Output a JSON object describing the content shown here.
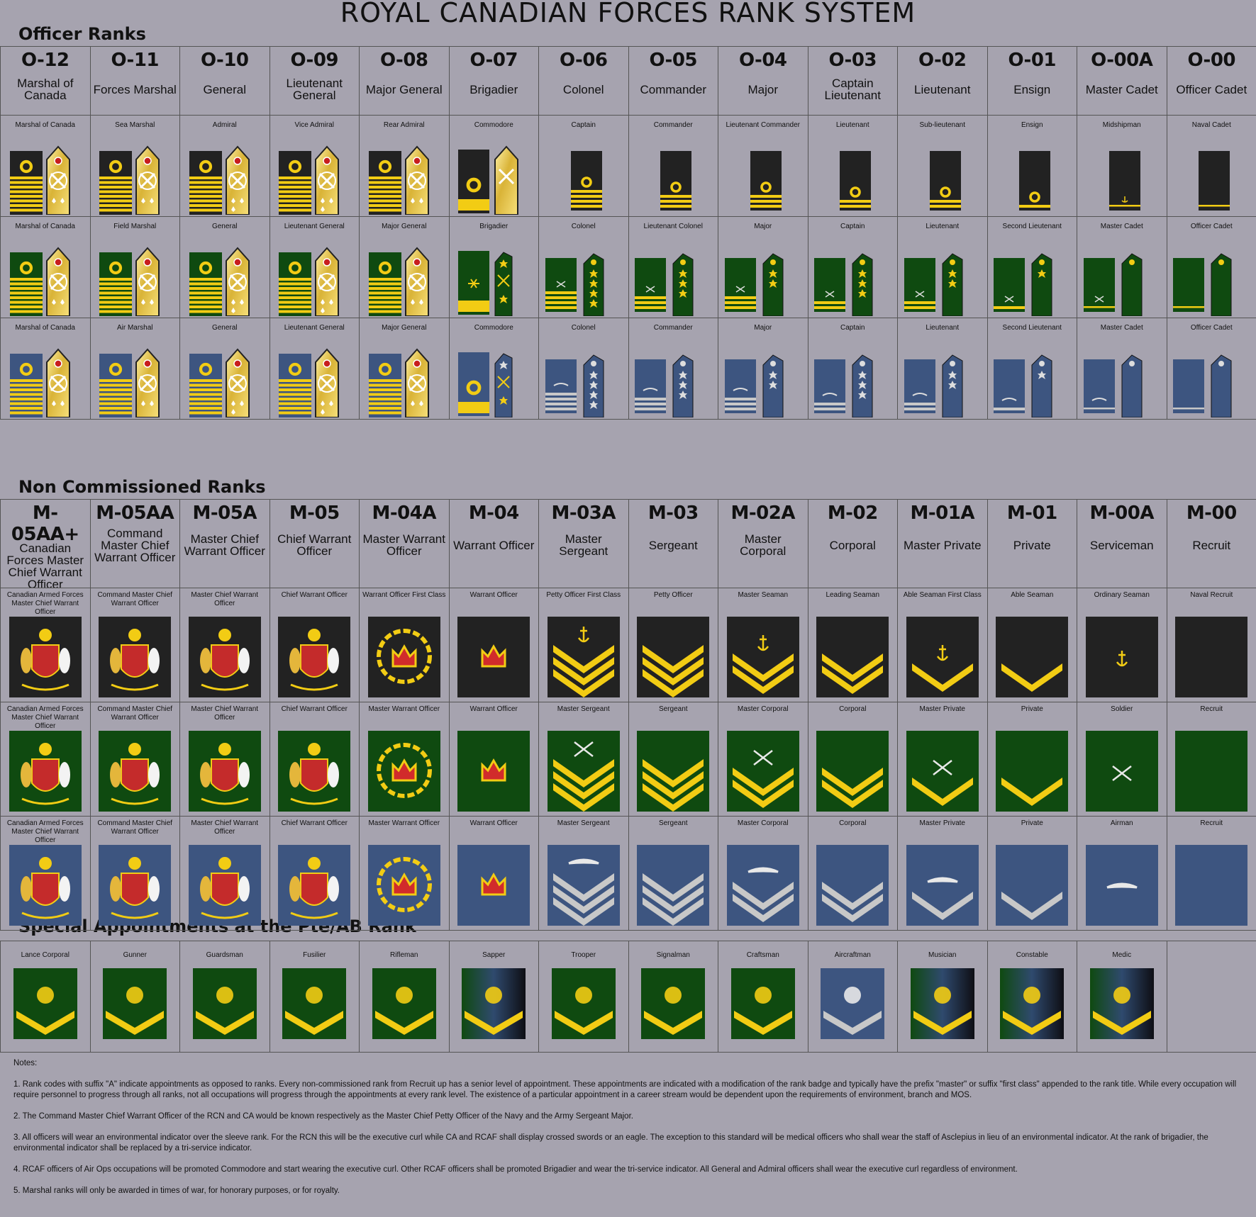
{
  "title": "ROYAL CANADIAN FORCES RANK SYSTEM",
  "sections": {
    "officer": "Officer Ranks",
    "nco": "Non Commissioned Ranks",
    "special": "Special Appointments at the Pte/AB Rank"
  },
  "colors": {
    "navy": "#222222",
    "army": "#0f4a10",
    "air": "#3d5580",
    "gold": "#f2cc14",
    "silver": "#c8c8c8",
    "background": "#a6a3af"
  },
  "officers": [
    {
      "code": "O-12",
      "name": "Marshal of Canada",
      "navy": "Marshal of Canada",
      "army": "Marshal of Canada",
      "air": "Marshal of Canada",
      "navy_stripes": 0,
      "army_stripes": 0,
      "air_stripes": 0,
      "style": "flag",
      "pips": 0
    },
    {
      "code": "O-11",
      "name": "Forces Marshal",
      "navy": "Sea Marshal",
      "army": "Field Marshal",
      "air": "Air Marshal",
      "navy_stripes": 0,
      "army_stripes": 0,
      "air_stripes": 0,
      "style": "flag",
      "pips": 0
    },
    {
      "code": "O-10",
      "name": "General",
      "navy": "Admiral",
      "army": "General",
      "air": "General",
      "navy_stripes": 0,
      "army_stripes": 0,
      "air_stripes": 0,
      "style": "flag",
      "pips": 0
    },
    {
      "code": "O-09",
      "name": "Lieutenant General",
      "navy": "Vice Admiral",
      "army": "Lieutenant General",
      "air": "Lieutenant General",
      "navy_stripes": 0,
      "army_stripes": 0,
      "air_stripes": 0,
      "style": "flag",
      "pips": 0
    },
    {
      "code": "O-08",
      "name": "Major General",
      "navy": "Rear Admiral",
      "army": "Major General",
      "air": "Major General",
      "navy_stripes": 0,
      "army_stripes": 0,
      "air_stripes": 0,
      "style": "flag",
      "pips": 0
    },
    {
      "code": "O-07",
      "name": "Brigadier",
      "navy": "Commodore",
      "army": "Brigadier",
      "air": "Commodore",
      "navy_stripes": 1,
      "army_stripes": 1,
      "air_stripes": 1,
      "style": "brig",
      "pips": 0
    },
    {
      "code": "O-06",
      "name": "Colonel",
      "navy": "Captain",
      "army": "Colonel",
      "air": "Colonel",
      "navy_stripes": 4,
      "army_stripes": 4,
      "air_stripes": 4,
      "style": "field",
      "pips": 4
    },
    {
      "code": "O-05",
      "name": "Commander",
      "navy": "Commander",
      "army": "Lieutenant Colonel",
      "air": "Commander",
      "navy_stripes": 3,
      "army_stripes": 3,
      "air_stripes": 3,
      "style": "field",
      "pips": 3
    },
    {
      "code": "O-04",
      "name": "Major",
      "navy": "Lieutenant Commander",
      "army": "Major",
      "air": "Major",
      "navy_stripes": 3,
      "army_stripes": 3,
      "air_stripes": 3,
      "style": "field",
      "pips": 2
    },
    {
      "code": "O-03",
      "name": "Captain Lieutenant",
      "navy": "Lieutenant",
      "army": "Captain",
      "air": "Captain",
      "navy_stripes": 2,
      "army_stripes": 2,
      "air_stripes": 2,
      "style": "field",
      "pips": 3
    },
    {
      "code": "O-02",
      "name": "Lieutenant",
      "navy": "Sub-lieutenant",
      "army": "Lieutenant",
      "air": "Lieutenant",
      "navy_stripes": 2,
      "army_stripes": 2,
      "air_stripes": 2,
      "style": "field",
      "pips": 2
    },
    {
      "code": "O-01",
      "name": "Ensign",
      "navy": "Ensign",
      "army": "Second Lieutenant",
      "air": "Second Lieutenant",
      "navy_stripes": 1,
      "army_stripes": 1,
      "air_stripes": 1,
      "style": "field",
      "pips": 1
    },
    {
      "code": "O-00A",
      "name": "Master Cadet",
      "navy": "Midshipman",
      "army": "Master Cadet",
      "air": "Master Cadet",
      "navy_stripes": 1,
      "army_stripes": 1,
      "air_stripes": 1,
      "style": "cadetA",
      "pips": 0
    },
    {
      "code": "O-00",
      "name": "Officer Cadet",
      "navy": "Naval Cadet",
      "army": "Officer Cadet",
      "air": "Officer Cadet",
      "navy_stripes": 1,
      "army_stripes": 1,
      "air_stripes": 1,
      "style": "cadet",
      "pips": 0
    }
  ],
  "ncos": [
    {
      "code": "M-05AA+",
      "name": "Canadian Forces Master Chief Warrant Officer",
      "navy": "Canadian Armed Forces Master Chief Warrant Officer",
      "army": "Canadian Armed Forces Master Chief Warrant Officer",
      "air": "Canadian Armed Forces Master Chief Warrant Officer",
      "badge": "arms",
      "chevrons": 0
    },
    {
      "code": "M-05AA",
      "name": "Command Master Chief Warrant Officer",
      "navy": "Command Master Chief Warrant Officer",
      "army": "Command Master Chief Warrant Officer",
      "air": "Command Master Chief Warrant Officer",
      "badge": "arms",
      "chevrons": 0
    },
    {
      "code": "M-05A",
      "name": "Master Chief Warrant Officer",
      "navy": "Master Chief Warrant Officer",
      "army": "Master Chief Warrant Officer",
      "air": "Master Chief Warrant Officer",
      "badge": "arms",
      "chevrons": 0
    },
    {
      "code": "M-05",
      "name": "Chief Warrant Officer",
      "navy": "Chief Warrant Officer",
      "army": "Chief Warrant Officer",
      "air": "Chief Warrant Officer",
      "badge": "arms",
      "chevrons": 0
    },
    {
      "code": "M-04A",
      "name": "Master Warrant Officer",
      "navy": "Warrant Officer First Class",
      "army": "Master Warrant Officer",
      "air": "Master Warrant Officer",
      "badge": "crownwreath",
      "chevrons": 0
    },
    {
      "code": "M-04",
      "name": "Warrant Officer",
      "navy": "Warrant Officer",
      "army": "Warrant Officer",
      "air": "Warrant Officer",
      "badge": "crown",
      "chevrons": 0
    },
    {
      "code": "M-03A",
      "name": "Master Sergeant",
      "navy": "Petty Officer First Class",
      "army": "Master Sergeant",
      "air": "Master Sergeant",
      "badge": "chev",
      "chevrons": 3,
      "emblem": true
    },
    {
      "code": "M-03",
      "name": "Sergeant",
      "navy": "Petty Officer",
      "army": "Sergeant",
      "air": "Sergeant",
      "badge": "chev",
      "chevrons": 3,
      "emblem": false
    },
    {
      "code": "M-02A",
      "name": "Master Corporal",
      "navy": "Master Seaman",
      "army": "Master Corporal",
      "air": "Master Corporal",
      "badge": "chev",
      "chevrons": 2,
      "emblem": true
    },
    {
      "code": "M-02",
      "name": "Corporal",
      "navy": "Leading Seaman",
      "army": "Corporal",
      "air": "Corporal",
      "badge": "chev",
      "chevrons": 2,
      "emblem": false
    },
    {
      "code": "M-01A",
      "name": "Master Private",
      "navy": "Able Seaman First Class",
      "army": "Master Private",
      "air": "Master Private",
      "badge": "chev",
      "chevrons": 1,
      "emblem": true
    },
    {
      "code": "M-01",
      "name": "Private",
      "navy": "Able Seaman",
      "army": "Private",
      "air": "Private",
      "badge": "chev",
      "chevrons": 1,
      "emblem": false
    },
    {
      "code": "M-00A",
      "name": "Serviceman",
      "navy": "Ordinary Seaman",
      "army": "Soldier",
      "air": "Airman",
      "badge": "chev",
      "chevrons": 0,
      "emblem": true
    },
    {
      "code": "M-00",
      "name": "Recruit",
      "navy": "Naval Recruit",
      "army": "Recruit",
      "air": "Recruit",
      "badge": "chev",
      "chevrons": 0,
      "emblem": false
    }
  ],
  "special": [
    {
      "label": "Lance Corporal",
      "bg": "army",
      "icon": "dagger-icon",
      "chevron": "gold"
    },
    {
      "label": "Gunner",
      "bg": "army",
      "icon": "grenade-icon",
      "chevron": "gold"
    },
    {
      "label": "Guardsman",
      "bg": "army",
      "icon": "maple-leaf-icon",
      "chevron": "gold"
    },
    {
      "label": "Fusilier",
      "bg": "army",
      "icon": "grenade-icon",
      "chevron": "gold"
    },
    {
      "label": "Rifleman",
      "bg": "army",
      "icon": "crossed-rifles-icon",
      "chevron": "gold"
    },
    {
      "label": "Sapper",
      "bg": "mixed",
      "icon": "beaver-icon",
      "chevron": "gold"
    },
    {
      "label": "Trooper",
      "bg": "army",
      "icon": "tank-icon",
      "chevron": "gold"
    },
    {
      "label": "Signalman",
      "bg": "army",
      "icon": "signal-flags-icon",
      "chevron": "gold"
    },
    {
      "label": "Craftsman",
      "bg": "army",
      "icon": "crossed-wrenches-icon",
      "chevron": "gold"
    },
    {
      "label": "Aircraftman",
      "bg": "air",
      "icon": "propeller-icon",
      "chevron": "silver"
    },
    {
      "label": "Musician",
      "bg": "mixed",
      "icon": "lyre-icon",
      "chevron": "gold"
    },
    {
      "label": "Constable",
      "bg": "mixed",
      "icon": "crossed-pistols-icon",
      "chevron": "gold"
    },
    {
      "label": "Medic",
      "bg": "mixed",
      "icon": "staff-of-asclepius-icon",
      "chevron": "gold"
    },
    {
      "label": "",
      "bg": "none",
      "icon": "",
      "chevron": ""
    }
  ],
  "notes": [
    "Notes:",
    "1. Rank codes with suffix \"A\" indicate appointments as opposed to ranks.  Every non-commissioned rank from Recruit up has a senior level of appointment.  These appointments are indicated with a modification of the rank badge and typically have the prefix \"master\" or suffix \"first class\" appended to the rank title.  While every occupation will require personnel to progress through all ranks, not all occupations will progress through the appointments at every rank level.  The existence of a particular appointment in a career stream would be dependent upon the requirements of environment, branch and MOS.",
    "2.  The Command Master Chief Warrant Officer of the RCN and CA would be known respectively as the Master Chief Petty Officer of the Navy and the Army Sergeant Major.",
    "3.  All officers will wear an environmental indicator over the sleeve rank.  For the RCN this will be the executive curl while CA and RCAF shall display crossed swords or an eagle.  The exception to this standard will be medical officers who shall wear the staff of Asclepius in lieu of an environmental indicator. At the rank of brigadier, the environmental indicator shall be replaced by a tri-service indicator.",
    "4.  RCAF officers of Air Ops occupations will be promoted Commodore and start wearing the executive curl.  Other RCAF officers shall be promoted Brigadier and wear the tri-service indicator.  All General and Admiral officers shall wear the executive curl regardless of environment.",
    "5.  Marshal ranks will only be awarded in times of war, for honorary purposes, or for royalty."
  ]
}
